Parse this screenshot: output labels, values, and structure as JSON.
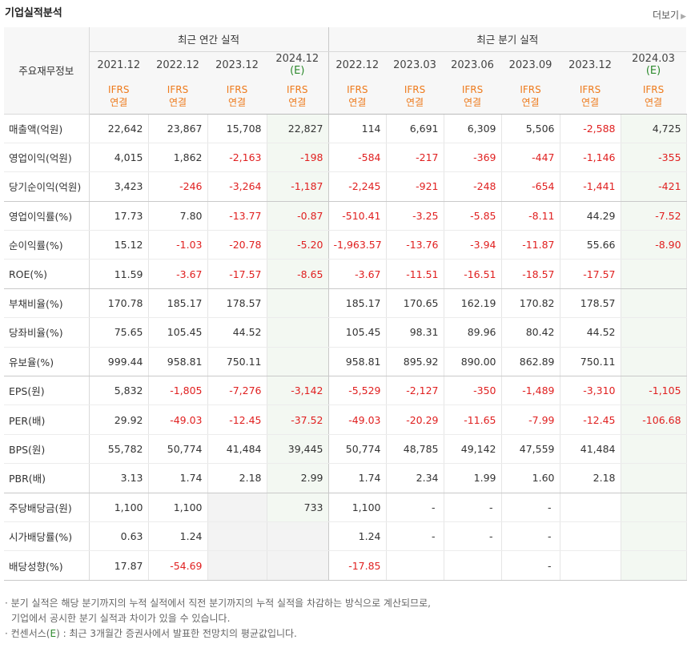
{
  "header": {
    "title": "기업실적분석",
    "more_label": "더보기",
    "more_arrow": "▶"
  },
  "table": {
    "row_header": "주요재무정보",
    "groups": {
      "annual": "최근 연간 실적",
      "quarterly": "최근 분기 실적"
    },
    "periods": [
      {
        "date": "2021.12",
        "est": ""
      },
      {
        "date": "2022.12",
        "est": ""
      },
      {
        "date": "2023.12",
        "est": ""
      },
      {
        "date": "2024.12",
        "est": "(E)"
      },
      {
        "date": "2022.12",
        "est": ""
      },
      {
        "date": "2023.03",
        "est": ""
      },
      {
        "date": "2023.06",
        "est": ""
      },
      {
        "date": "2023.09",
        "est": ""
      },
      {
        "date": "2023.12",
        "est": ""
      },
      {
        "date": "2024.03",
        "est": "(E)"
      }
    ],
    "ifrs_line1": "IFRS",
    "ifrs_line2": "연결",
    "rows": [
      {
        "label": "매출액(억원)",
        "values": [
          "22,642",
          "23,867",
          "15,708",
          "22,827",
          "114",
          "6,691",
          "6,309",
          "5,506",
          "-2,588",
          "4,725"
        ]
      },
      {
        "label": "영업이익(억원)",
        "values": [
          "4,015",
          "1,862",
          "-2,163",
          "-198",
          "-584",
          "-217",
          "-369",
          "-447",
          "-1,146",
          "-355"
        ]
      },
      {
        "label": "당기순이익(억원)",
        "values": [
          "3,423",
          "-246",
          "-3,264",
          "-1,187",
          "-2,245",
          "-921",
          "-248",
          "-654",
          "-1,441",
          "-421"
        ]
      },
      {
        "label": "영업이익률(%)",
        "values": [
          "17.73",
          "7.80",
          "-13.77",
          "-0.87",
          "-510.41",
          "-3.25",
          "-5.85",
          "-8.11",
          "44.29",
          "-7.52"
        ]
      },
      {
        "label": "순이익률(%)",
        "values": [
          "15.12",
          "-1.03",
          "-20.78",
          "-5.20",
          "-1,963.57",
          "-13.76",
          "-3.94",
          "-11.87",
          "55.66",
          "-8.90"
        ]
      },
      {
        "label": "ROE(%)",
        "values": [
          "11.59",
          "-3.67",
          "-17.57",
          "-8.65",
          "-3.67",
          "-11.51",
          "-16.51",
          "-18.57",
          "-17.57",
          ""
        ]
      },
      {
        "label": "부채비율(%)",
        "values": [
          "170.78",
          "185.17",
          "178.57",
          "",
          "185.17",
          "170.65",
          "162.19",
          "170.82",
          "178.57",
          ""
        ]
      },
      {
        "label": "당좌비율(%)",
        "values": [
          "75.65",
          "105.45",
          "44.52",
          "",
          "105.45",
          "98.31",
          "89.96",
          "80.42",
          "44.52",
          ""
        ]
      },
      {
        "label": "유보율(%)",
        "values": [
          "999.44",
          "958.81",
          "750.11",
          "",
          "958.81",
          "895.92",
          "890.00",
          "862.89",
          "750.11",
          ""
        ]
      },
      {
        "label": "EPS(원)",
        "values": [
          "5,832",
          "-1,805",
          "-7,276",
          "-3,142",
          "-5,529",
          "-2,127",
          "-350",
          "-1,489",
          "-3,310",
          "-1,105"
        ]
      },
      {
        "label": "PER(배)",
        "values": [
          "29.92",
          "-49.03",
          "-12.45",
          "-37.52",
          "-49.03",
          "-20.29",
          "-11.65",
          "-7.99",
          "-12.45",
          "-106.68"
        ]
      },
      {
        "label": "BPS(원)",
        "values": [
          "55,782",
          "50,774",
          "41,484",
          "39,445",
          "50,774",
          "48,785",
          "49,142",
          "47,559",
          "41,484",
          ""
        ]
      },
      {
        "label": "PBR(배)",
        "values": [
          "3.13",
          "1.74",
          "2.18",
          "2.99",
          "1.74",
          "2.34",
          "1.99",
          "1.60",
          "2.18",
          ""
        ]
      },
      {
        "label": "주당배당금(원)",
        "values": [
          "1,100",
          "1,100",
          "*",
          "733",
          "1,100",
          "-",
          "-",
          "-",
          "",
          ""
        ]
      },
      {
        "label": "시가배당률(%)",
        "values": [
          "0.63",
          "1.24",
          "*",
          "*",
          "1.24",
          "-",
          "-",
          "-",
          "",
          ""
        ]
      },
      {
        "label": "배당성향(%)",
        "values": [
          "17.87",
          "-54.69",
          "*",
          "*",
          "-17.85",
          "",
          "",
          "-",
          "",
          ""
        ]
      }
    ]
  },
  "notes": {
    "line1": "· 분기 실적은 해당 분기까지의 누적 실적에서 직전 분기까지의 누적 실적을 차감하는 방식으로 계산되므로,",
    "line2": "기업에서 공시한 분기 실적과 차이가 있을 수 있습니다.",
    "line3_prefix": "· 컨센서스(",
    "line3_mark": "E",
    "line3_suffix": ") : 최근 3개월간 증권사에서 발표한 전망치의 평균값입니다."
  },
  "colors": {
    "negative": "#e02020",
    "ifrs": "#ee7a1c",
    "estimate": "#2d8a2d"
  }
}
